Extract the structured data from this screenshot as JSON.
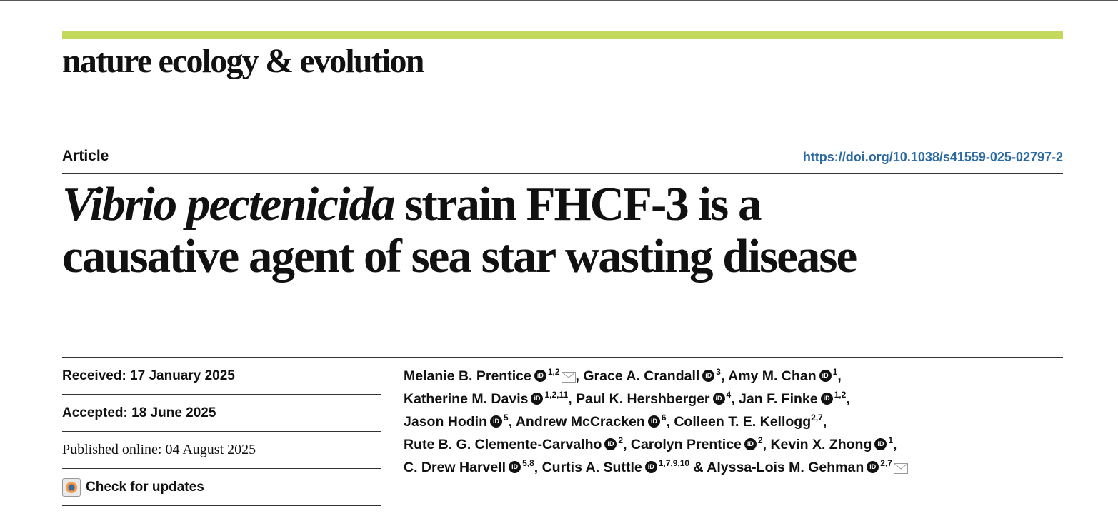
{
  "journal": {
    "name": "nature ecology & evolution",
    "accent_color": "#c3d95b"
  },
  "article": {
    "type": "Article",
    "doi": "https://doi.org/10.1038/s41559-025-02797-2",
    "title_italic": "Vibrio pectenicida",
    "title_line1_rest": " strain FHCF-3 is a",
    "title_line2": "causative agent of sea star wasting disease"
  },
  "meta": {
    "received": "Received: 17 January 2025",
    "accepted": "Accepted: 18 June 2025",
    "published": "Published online: 04 August 2025",
    "check_updates": "Check for updates",
    "check_updates_icon": "check-updates-icon"
  },
  "authors": [
    {
      "name": "Melanie B. Prentice",
      "aff": "1,2",
      "orcid": true,
      "email": true,
      "sep": ", "
    },
    {
      "name": "Grace A. Crandall",
      "aff": "3",
      "orcid": true,
      "sep": ", "
    },
    {
      "name": "Amy M. Chan",
      "aff": "1",
      "orcid": true,
      "sep": ","
    },
    {
      "name": "Katherine M. Davis",
      "aff": "1,2,11",
      "orcid": true,
      "sep": ", "
    },
    {
      "name": "Paul K. Hershberger",
      "aff": "4",
      "orcid": true,
      "sep": ", "
    },
    {
      "name": "Jan F. Finke",
      "aff": "1,2",
      "orcid": true,
      "sep": ","
    },
    {
      "name": "Jason Hodin",
      "aff": "5",
      "orcid": true,
      "sep": ", "
    },
    {
      "name": "Andrew McCracken",
      "aff": "6",
      "orcid": true,
      "sep": ", "
    },
    {
      "name": "Colleen T. E. Kellogg",
      "aff": "2,7",
      "orcid": false,
      "sep": ","
    },
    {
      "name": "Rute B. G. Clemente-Carvalho",
      "aff": "2",
      "orcid": true,
      "sep": ", "
    },
    {
      "name": "Carolyn Prentice",
      "aff": "2",
      "orcid": true,
      "sep": ", "
    },
    {
      "name": "Kevin X. Zhong",
      "aff": "1",
      "orcid": true,
      "sep": ","
    },
    {
      "name": "C. Drew Harvell",
      "aff": "5,8",
      "orcid": true,
      "sep": ", "
    },
    {
      "name": "Curtis A. Suttle",
      "aff": "1,7,9,10",
      "orcid": true,
      "sep": " & "
    },
    {
      "name": "Alyssa-Lois M. Gehman",
      "aff": "2,7",
      "orcid": true,
      "email": true,
      "sep": ""
    }
  ]
}
